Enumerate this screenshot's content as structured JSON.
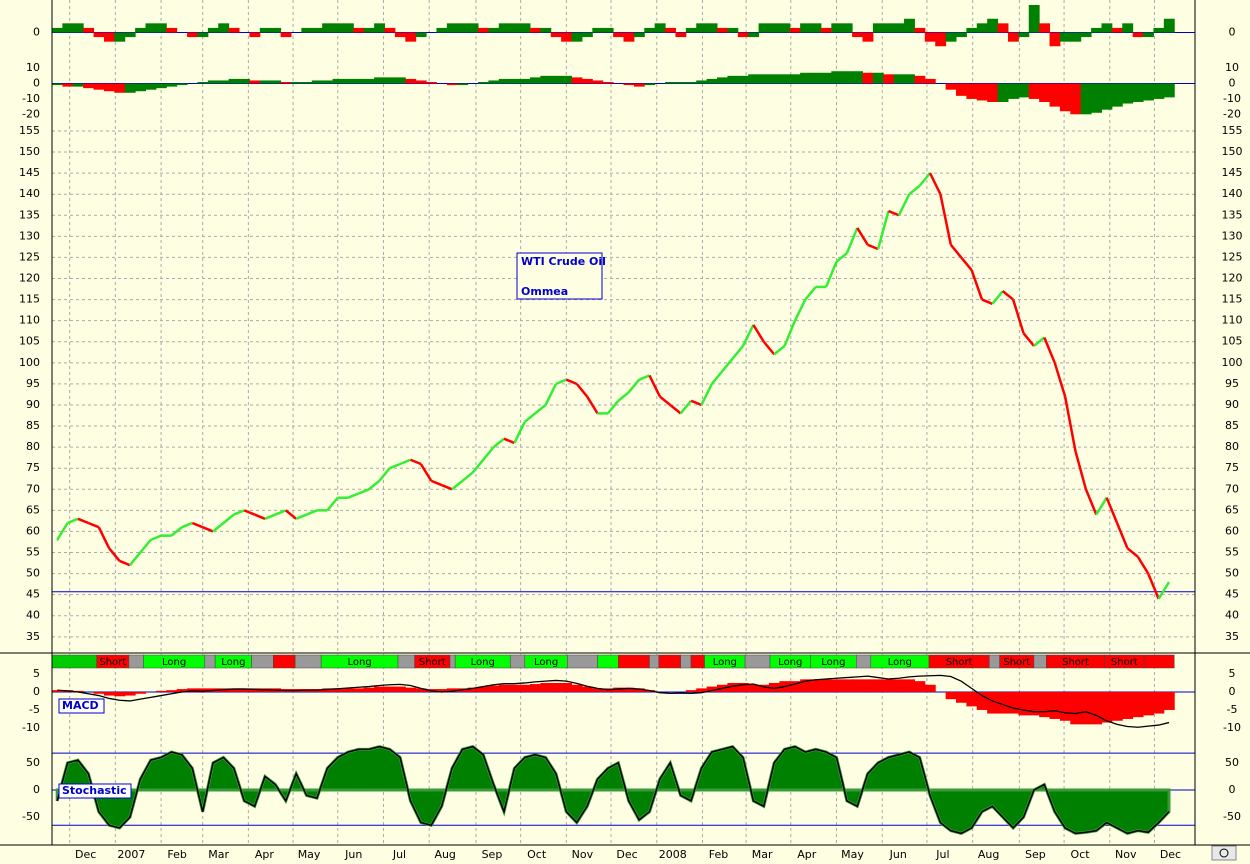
{
  "chart_data": [
    {
      "type": "bar",
      "values": [
        1,
        2,
        2,
        1,
        -1,
        -2,
        -2,
        -1,
        1,
        2,
        2,
        1,
        0,
        -1,
        -1,
        1,
        2,
        1,
        0,
        -1,
        1,
        1,
        -1,
        0,
        1,
        1,
        2,
        2,
        2,
        1,
        1,
        2,
        1,
        -1,
        -2,
        -1,
        0,
        1,
        2,
        2,
        2,
        1,
        1,
        2,
        2,
        2,
        1,
        1,
        -1,
        -2,
        -2,
        -1,
        1,
        1,
        -1,
        -2,
        -1,
        1,
        2,
        1,
        -1,
        1,
        2,
        2,
        1,
        1,
        -1,
        -1,
        2,
        2,
        2,
        1,
        2,
        2,
        1,
        2,
        2,
        -1,
        -2,
        2,
        2,
        2,
        3,
        1,
        -2,
        -3,
        -2,
        -1,
        1,
        2,
        3,
        2,
        -2,
        -1,
        6,
        2,
        -3,
        -2,
        -2,
        -1,
        1,
        2,
        1,
        2,
        -1,
        -1,
        1,
        3
      ],
      "ylim": [
        -6,
        6
      ],
      "yticks": [
        0
      ],
      "up_color": "#008000",
      "down_color": "#ff0000"
    },
    {
      "type": "bar",
      "values": [
        -1,
        -2,
        -2,
        -3,
        -4,
        -5,
        -6,
        -6,
        -5,
        -4,
        -3,
        -2,
        -1,
        0,
        1,
        2,
        2,
        3,
        3,
        2,
        2,
        2,
        1,
        1,
        1,
        2,
        2,
        3,
        3,
        3,
        3,
        4,
        4,
        4,
        3,
        2,
        1,
        0,
        -1,
        -1,
        0,
        1,
        2,
        3,
        3,
        3,
        4,
        5,
        5,
        5,
        4,
        3,
        2,
        1,
        0,
        -1,
        -2,
        -1,
        0,
        1,
        1,
        1,
        2,
        3,
        4,
        5,
        5,
        6,
        6,
        6,
        6,
        6,
        7,
        7,
        7,
        8,
        8,
        8,
        7,
        7,
        6,
        6,
        6,
        5,
        3,
        0,
        -4,
        -8,
        -10,
        -11,
        -12,
        -12,
        -10,
        -9,
        -10,
        -12,
        -15,
        -18,
        -20,
        -20,
        -19,
        -17,
        -15,
        -13,
        -12,
        -11,
        -10,
        -9
      ],
      "ylim": [
        -25,
        14
      ],
      "yticks": [
        10,
        0,
        -10,
        -20
      ],
      "up_color": "#008000",
      "down_color": "#ff0000"
    },
    {
      "type": "price",
      "title": "WTI Crude Oil",
      "subtitle": "Ommea",
      "values": [
        58,
        62,
        63,
        62,
        61,
        56,
        53,
        52,
        55,
        58,
        59,
        59,
        61,
        62,
        61,
        60,
        62,
        64,
        65,
        64,
        63,
        64,
        65,
        63,
        64,
        65,
        65,
        68,
        68,
        69,
        70,
        72,
        75,
        76,
        77,
        76,
        72,
        71,
        70,
        72,
        74,
        77,
        80,
        82,
        81,
        86,
        88,
        90,
        95,
        96,
        95,
        92,
        88,
        88,
        91,
        93,
        96,
        97,
        92,
        90,
        88,
        91,
        90,
        95,
        98,
        101,
        104,
        109,
        105,
        102,
        104,
        110,
        115,
        118,
        118,
        124,
        126,
        132,
        128,
        127,
        136,
        135,
        140,
        142,
        145,
        140,
        128,
        125,
        122,
        115,
        114,
        117,
        115,
        107,
        104,
        106,
        100,
        92,
        79,
        70,
        64,
        68,
        62,
        56,
        54,
        50,
        44,
        48
      ],
      "up_color": "#33ee33",
      "down_color": "#ff0000",
      "ylim": [
        31.4,
        157.6
      ],
      "yticks": [
        35,
        40,
        45,
        50,
        55,
        60,
        65,
        70,
        75,
        80,
        85,
        90,
        95,
        100,
        105,
        110,
        115,
        120,
        125,
        130,
        135,
        140,
        145,
        150,
        155
      ],
      "xlim": [
        -0.5,
        109.5
      ],
      "xticks": [
        {
          "value": 1.2,
          "label": "Dec"
        },
        {
          "value": 5.6,
          "label": "2007"
        },
        {
          "value": 10,
          "label": "Feb"
        },
        {
          "value": 14,
          "label": "Mar"
        },
        {
          "value": 18.4,
          "label": "Apr"
        },
        {
          "value": 22.7,
          "label": "May"
        },
        {
          "value": 27,
          "label": "Jun"
        },
        {
          "value": 31.4,
          "label": "Jul"
        },
        {
          "value": 35.8,
          "label": "Aug"
        },
        {
          "value": 40.3,
          "label": "Sep"
        },
        {
          "value": 44.6,
          "label": "Oct"
        },
        {
          "value": 49,
          "label": "Nov"
        },
        {
          "value": 53.3,
          "label": "Dec"
        },
        {
          "value": 57.7,
          "label": "2008"
        },
        {
          "value": 62.1,
          "label": "Feb"
        },
        {
          "value": 66.3,
          "label": "Mar"
        },
        {
          "value": 70.6,
          "label": "Apr"
        },
        {
          "value": 75,
          "label": "May"
        },
        {
          "value": 79.4,
          "label": "Jun"
        },
        {
          "value": 83.7,
          "label": "Jul"
        },
        {
          "value": 88.1,
          "label": "Aug"
        },
        {
          "value": 92.6,
          "label": "Sep"
        },
        {
          "value": 96.9,
          "label": "Oct"
        },
        {
          "value": 101.3,
          "label": "Nov"
        },
        {
          "value": 105.6,
          "label": "Dec"
        }
      ],
      "reference_line": 45.7,
      "signals": [
        {
          "start": -0.5,
          "end": 3.8,
          "color": "#00cc00"
        },
        {
          "start": 3.8,
          "end": 6.9,
          "color": "#ff0000",
          "label": "Short"
        },
        {
          "start": 6.9,
          "end": 8.3,
          "color": "#999999"
        },
        {
          "start": 8.3,
          "end": 14.2,
          "color": "#00ff00",
          "label": "Long"
        },
        {
          "start": 14.2,
          "end": 15.2,
          "color": "#999999"
        },
        {
          "start": 15.2,
          "end": 18.7,
          "color": "#00ff00",
          "label": "Long"
        },
        {
          "start": 18.7,
          "end": 20.8,
          "color": "#999999"
        },
        {
          "start": 20.8,
          "end": 22.9,
          "color": "#ff0000"
        },
        {
          "start": 22.9,
          "end": 25.4,
          "color": "#999999"
        },
        {
          "start": 25.4,
          "end": 32.8,
          "color": "#00ff00",
          "label": "Long"
        },
        {
          "start": 32.8,
          "end": 34.4,
          "color": "#999999"
        },
        {
          "start": 34.4,
          "end": 37.8,
          "color": "#ff0000",
          "label": "Short"
        },
        {
          "start": 37.8,
          "end": 38.3,
          "color": "#999999"
        },
        {
          "start": 38.3,
          "end": 43.6,
          "color": "#00ff00",
          "label": "Long"
        },
        {
          "start": 43.6,
          "end": 45,
          "color": "#999999"
        },
        {
          "start": 45,
          "end": 49.1,
          "color": "#00ff00",
          "label": "Long"
        },
        {
          "start": 49.1,
          "end": 52,
          "color": "#999999"
        },
        {
          "start": 52,
          "end": 54,
          "color": "#00ff00"
        },
        {
          "start": 54,
          "end": 57,
          "color": "#ff0000"
        },
        {
          "start": 57,
          "end": 57.9,
          "color": "#999999"
        },
        {
          "start": 57.9,
          "end": 60,
          "color": "#ff0000"
        },
        {
          "start": 60,
          "end": 61,
          "color": "#999999"
        },
        {
          "start": 61,
          "end": 62.3,
          "color": "#ff0000"
        },
        {
          "start": 62.3,
          "end": 66.2,
          "color": "#00ff00",
          "label": "Long"
        },
        {
          "start": 66.2,
          "end": 68.6,
          "color": "#999999"
        },
        {
          "start": 68.6,
          "end": 72.5,
          "color": "#00ff00",
          "label": "Long"
        },
        {
          "start": 72.5,
          "end": 76.9,
          "color": "#00ff00",
          "label": "Long"
        },
        {
          "start": 76.9,
          "end": 78.3,
          "color": "#999999"
        },
        {
          "start": 78.3,
          "end": 83.9,
          "color": "#00ff00",
          "label": "Long"
        },
        {
          "start": 83.9,
          "end": 89.7,
          "color": "#ff0000",
          "label": "Short"
        },
        {
          "start": 89.7,
          "end": 90.7,
          "color": "#999999"
        },
        {
          "start": 90.7,
          "end": 94,
          "color": "#ff0000",
          "label": "Short"
        },
        {
          "start": 94,
          "end": 95.2,
          "color": "#999999"
        },
        {
          "start": 95.2,
          "end": 100.8,
          "color": "#ff0000",
          "label": "Short"
        },
        {
          "start": 100.8,
          "end": 104.6,
          "color": "#ff0000",
          "label": "Short"
        },
        {
          "start": 104.6,
          "end": 107.5,
          "color": "#ff0000"
        }
      ]
    },
    {
      "type": "macd",
      "label": "MACD",
      "histogram": [
        0.5,
        0.5,
        0.3,
        0,
        -0.5,
        -1,
        -1.2,
        -1,
        -0.5,
        0,
        0.3,
        0.5,
        0.8,
        1,
        1,
        1,
        1,
        1,
        1,
        1,
        1,
        1,
        0.8,
        0.8,
        0.8,
        0.8,
        1,
        1,
        1,
        1,
        1.2,
        1.5,
        1.5,
        1.5,
        1.2,
        1,
        0.8,
        0.8,
        1,
        1,
        1.2,
        1.5,
        1.8,
        2,
        2,
        2,
        2.2,
        2.5,
        2.5,
        2.5,
        2,
        1.5,
        1,
        1,
        1.2,
        1.2,
        1,
        0.5,
        0,
        0,
        0,
        0.5,
        1,
        1.5,
        2,
        2.5,
        2.5,
        2,
        2,
        2.5,
        3,
        3,
        3.5,
        3.5,
        3.5,
        3.5,
        3.5,
        3.5,
        3.5,
        3.5,
        3.5,
        3.5,
        3.5,
        3,
        2,
        0,
        -2,
        -3,
        -4,
        -5,
        -6,
        -6,
        -6,
        -6.5,
        -6.5,
        -7,
        -7.5,
        -8,
        -9,
        -9,
        -9,
        -8.5,
        -8,
        -7.5,
        -7,
        -6.5,
        -6,
        -5
      ],
      "values": [
        0.5,
        0.3,
        0,
        -0.5,
        -1,
        -1.8,
        -2.3,
        -2.5,
        -2,
        -1.5,
        -1,
        -0.5,
        0,
        0.3,
        0.2,
        0.4,
        0.6,
        0.8,
        0.8,
        0.7,
        0.6,
        0.5,
        0.4,
        0.4,
        0.5,
        0.5,
        0.7,
        0.9,
        1.1,
        1.3,
        1.5,
        1.8,
        2,
        2.1,
        1.8,
        1,
        0.3,
        0,
        0.2,
        0.6,
        1,
        1.5,
        2,
        2.3,
        2.3,
        2.5,
        2.8,
        3,
        3.2,
        3,
        2.4,
        1.6,
        1,
        0.6,
        0.8,
        1,
        0.8,
        0.4,
        -0.2,
        -0.4,
        -0.3,
        -0.4,
        -0.2,
        0.4,
        1,
        1.6,
        2,
        2.2,
        1.4,
        1,
        1.5,
        2.2,
        3,
        3.4,
        3.6,
        3.8,
        4,
        4.2,
        4.4,
        4,
        3.6,
        3.8,
        4.2,
        4.4,
        4.5,
        4.6,
        4.3,
        3,
        1,
        -1,
        -2.5,
        -3.5,
        -4.5,
        -5,
        -5.5,
        -5.5,
        -5.2,
        -5.8,
        -6,
        -5.5,
        -6.5,
        -8,
        -9,
        -9.6,
        -9.8,
        -9.5,
        -9.2,
        -8.5
      ],
      "hist_color": "#ff0000",
      "line_color": "#000000",
      "ylim": [
        -13.9,
        6.1
      ],
      "yticks": [
        5,
        0,
        -5,
        -10
      ]
    },
    {
      "type": "stochastic",
      "label": "Stochastic",
      "values": [
        -20,
        50,
        55,
        30,
        -40,
        -65,
        -70,
        -50,
        20,
        55,
        60,
        70,
        65,
        40,
        -40,
        50,
        60,
        40,
        -20,
        -30,
        25,
        10,
        -20,
        30,
        -10,
        -15,
        40,
        60,
        70,
        75,
        75,
        80,
        75,
        60,
        -20,
        -60,
        -65,
        -30,
        40,
        75,
        80,
        65,
        10,
        -40,
        40,
        60,
        65,
        60,
        30,
        -40,
        -60,
        -30,
        20,
        40,
        50,
        -20,
        -55,
        -40,
        20,
        50,
        -10,
        -20,
        40,
        70,
        75,
        80,
        60,
        -20,
        -30,
        50,
        75,
        80,
        70,
        75,
        70,
        60,
        -20,
        -30,
        30,
        50,
        60,
        65,
        70,
        60,
        -10,
        -60,
        -75,
        -80,
        -70,
        -40,
        -30,
        -50,
        -70,
        -50,
        0,
        10,
        -40,
        -70,
        -80,
        -78,
        -75,
        -60,
        -70,
        -80,
        -75,
        -78,
        -60,
        -40
      ],
      "fill_color": "#008000",
      "line_color": "#000000",
      "levels": [
        68,
        -65
      ],
      "ylim": [
        -83,
        83
      ],
      "yticks": [
        50,
        0,
        -50
      ]
    }
  ]
}
